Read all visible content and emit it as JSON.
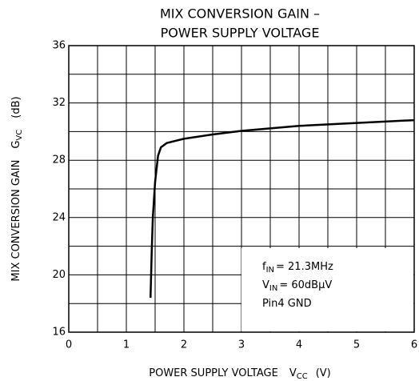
{
  "chart_data": {
    "type": "line",
    "title": [
      "MIX CONVERSION GAIN –",
      "POWER SUPPLY VOLTAGE"
    ],
    "x_label": {
      "text": "POWER SUPPLY VOLTAGE",
      "symbol": "V",
      "subscript": "CC",
      "unit": "(V)"
    },
    "y_label": {
      "text": "MIX CONVERSION GAIN",
      "symbol": "G",
      "subscript": "VC",
      "unit": "(dB)"
    },
    "x": [
      1.42,
      1.44,
      1.46,
      1.5,
      1.55,
      1.6,
      1.7,
      2,
      2.5,
      3,
      4,
      5,
      6
    ],
    "values": [
      18.4,
      21.5,
      24,
      26.5,
      28.3,
      28.9,
      29.2,
      29.5,
      29.8,
      30.05,
      30.4,
      30.6,
      30.8
    ],
    "color": "#000000",
    "xlim": [
      0,
      6
    ],
    "ylim": [
      16,
      36
    ],
    "xticks": [
      0,
      1,
      2,
      3,
      4,
      5,
      6
    ],
    "yticks": [
      16,
      20,
      24,
      28,
      32,
      36
    ],
    "x_minor_ticks": [
      0.5,
      1.5,
      2.5,
      3.5,
      4.5,
      5.5
    ],
    "y_minor_ticks": [
      18,
      22,
      26,
      30,
      34
    ],
    "grid": true,
    "annotations": [
      {
        "symbol": "f",
        "subscript": "IN",
        "text": "= 21.3MHz"
      },
      {
        "symbol": "V",
        "subscript": "IN",
        "text": "= 60dBμV"
      },
      {
        "text": "Pin4  GND"
      }
    ]
  }
}
